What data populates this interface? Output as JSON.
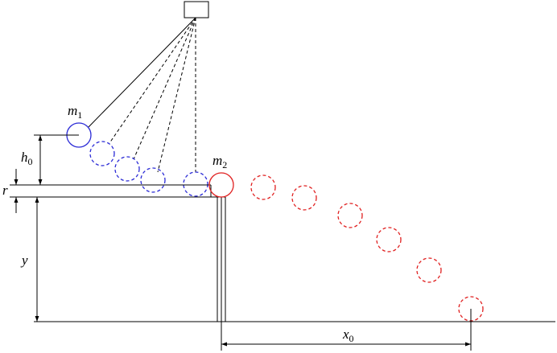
{
  "labels": {
    "m1": {
      "main": "m",
      "sub": "1"
    },
    "m2": {
      "main": "m",
      "sub": "2"
    },
    "h0": {
      "main": "h",
      "sub": "0"
    },
    "r": {
      "main": "r"
    },
    "y": {
      "main": "y"
    },
    "x0": {
      "main": "x",
      "sub": "0"
    }
  },
  "colors": {
    "line": "#000000",
    "ball_m1": "#2b2bd6",
    "ball_m2": "#e02020"
  }
}
